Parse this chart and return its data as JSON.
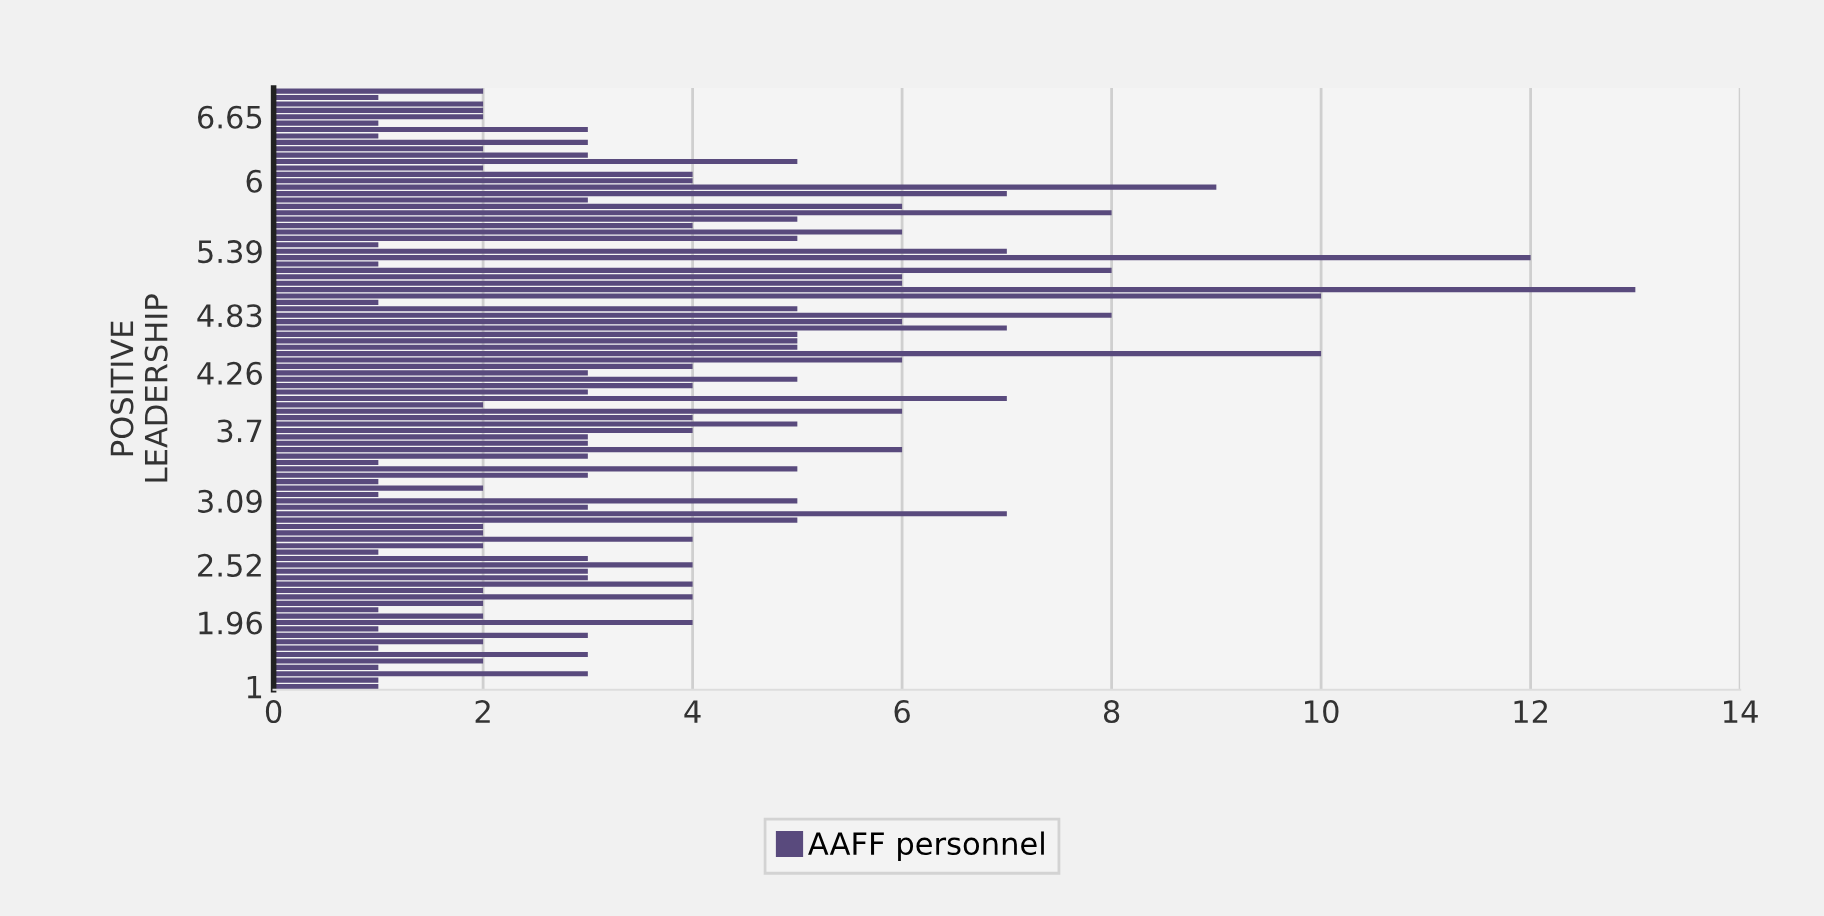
{
  "chart_data": {
    "type": "bar",
    "orientation": "horizontal",
    "ylabel": "POSITIVE\nLEADERSHIP",
    "categories": [
      null,
      null,
      null,
      null,
      "6.65",
      null,
      null,
      null,
      null,
      null,
      null,
      null,
      null,
      null,
      "6",
      null,
      null,
      null,
      null,
      null,
      null,
      null,
      null,
      null,
      null,
      "5.39",
      null,
      null,
      null,
      null,
      null,
      null,
      null,
      null,
      null,
      "4.83",
      null,
      null,
      null,
      null,
      null,
      null,
      null,
      null,
      "4.26",
      null,
      null,
      null,
      null,
      null,
      null,
      null,
      null,
      "3.7",
      null,
      null,
      null,
      null,
      null,
      null,
      null,
      null,
      null,
      null,
      "3.09",
      null,
      null,
      null,
      null,
      null,
      null,
      null,
      null,
      null,
      "2.52",
      null,
      null,
      null,
      null,
      null,
      null,
      null,
      null,
      "1.96",
      null,
      null,
      null,
      null,
      null,
      null,
      null,
      null,
      null,
      "1"
    ],
    "series": [
      {
        "name": "AAFF personnel",
        "color": "#594a7d",
        "values": [
          2,
          1,
          2,
          2,
          2,
          1,
          3,
          1,
          3,
          2,
          3,
          5,
          2,
          4,
          4,
          9,
          7,
          3,
          6,
          8,
          5,
          4,
          6,
          5,
          1,
          7,
          12,
          1,
          8,
          6,
          6,
          13,
          10,
          1,
          5,
          8,
          6,
          7,
          5,
          5,
          5,
          10,
          6,
          4,
          3,
          5,
          4,
          3,
          7,
          2,
          6,
          4,
          5,
          4,
          3,
          3,
          6,
          3,
          1,
          5,
          3,
          1,
          2,
          1,
          5,
          3,
          7,
          5,
          2,
          2,
          4,
          2,
          1,
          3,
          4,
          3,
          3,
          4,
          2,
          4,
          2,
          1,
          2,
          4,
          1,
          3,
          2,
          1,
          3,
          2,
          1,
          3,
          1,
          1
        ]
      }
    ],
    "xlim": [
      0,
      14
    ],
    "xticks": [
      0,
      2,
      4,
      6,
      8,
      10,
      12,
      14
    ],
    "grid": "x",
    "legend": "bottom"
  }
}
